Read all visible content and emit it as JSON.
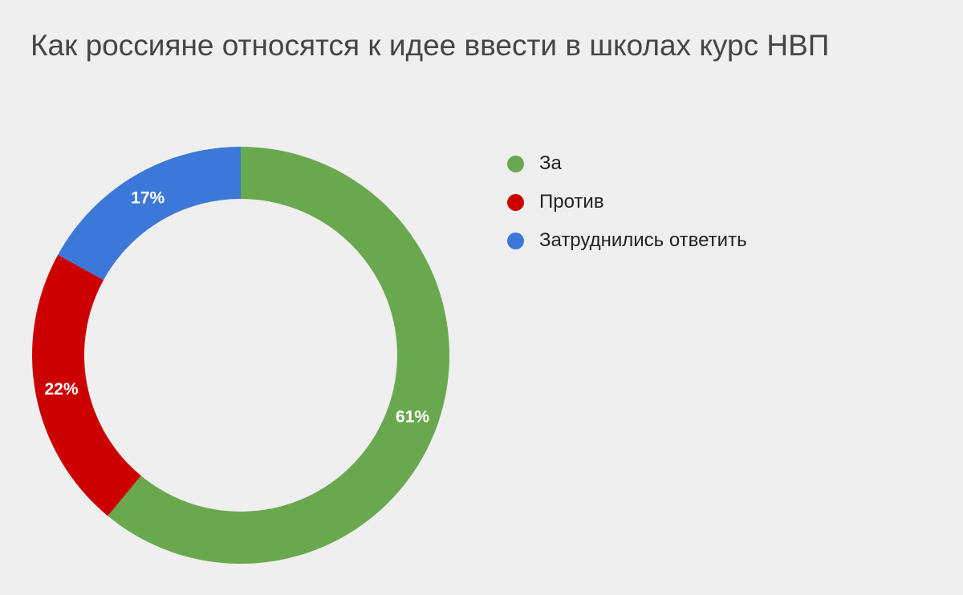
{
  "chart_data": {
    "type": "pie",
    "title": "Как россияне относятся к идее ввести в школах курс НВП",
    "donut": true,
    "legend_position": "right",
    "slices": [
      {
        "label": "За",
        "value": 61,
        "display": "61%",
        "color": "#6aa84f"
      },
      {
        "label": "Против",
        "value": 22,
        "display": "22%",
        "color": "#cc0000"
      },
      {
        "label": "Затруднились ответить",
        "value": 17,
        "display": "17%",
        "color": "#3c78d8"
      }
    ]
  }
}
